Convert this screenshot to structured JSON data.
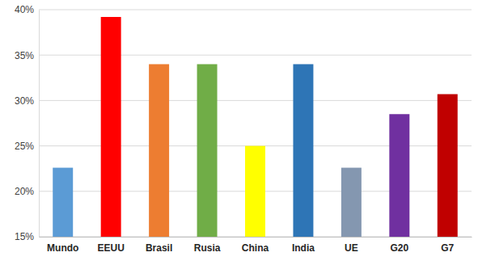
{
  "chart_data": {
    "type": "bar",
    "categories": [
      "Mundo",
      "EEUU",
      "Brasil",
      "Rusia",
      "China",
      "India",
      "UE",
      "G20",
      "G7"
    ],
    "values": [
      22.6,
      39.2,
      34,
      34,
      25,
      34,
      22.6,
      28.5,
      30.7
    ],
    "colors": [
      "#5b9bd5",
      "#ff0000",
      "#ed7d31",
      "#70ad47",
      "#ffff00",
      "#2e75b6",
      "#8497b0",
      "#7030a0",
      "#c00000"
    ],
    "ylim": [
      15,
      40
    ],
    "yticks": [
      {
        "value": 15,
        "label": "15%"
      },
      {
        "value": 20,
        "label": "20%"
      },
      {
        "value": 25,
        "label": "25%"
      },
      {
        "value": 30,
        "label": "30%"
      },
      {
        "value": 35,
        "label": "35%"
      },
      {
        "value": 40,
        "label": "40%"
      }
    ],
    "grid": true
  }
}
